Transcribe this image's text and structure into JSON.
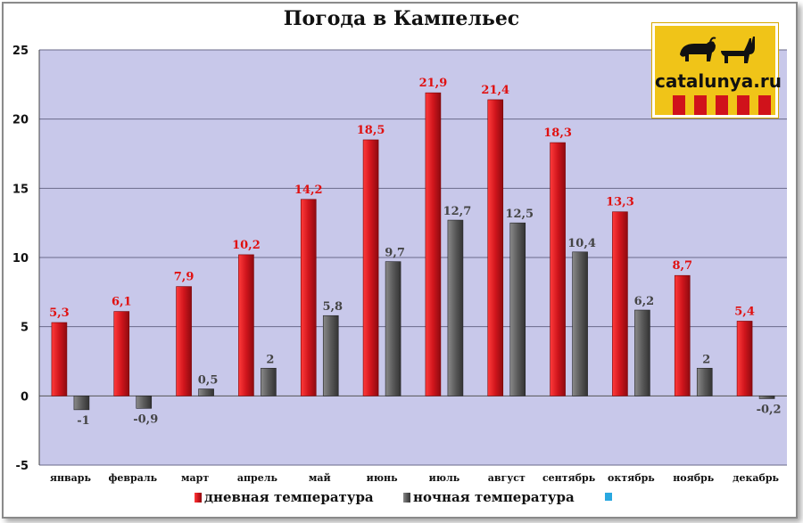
{
  "chart_data": {
    "type": "bar",
    "title": "Погода в Кампельес",
    "categories": [
      "январь",
      "февраль",
      "март",
      "апрель",
      "май",
      "июнь",
      "июль",
      "август",
      "сентябрь",
      "октябрь",
      "ноябрь",
      "декабрь"
    ],
    "series": [
      {
        "name": "дневная температура",
        "color": "#d0151c",
        "values": [
          5.3,
          6.1,
          7.9,
          10.2,
          14.2,
          18.5,
          21.9,
          21.4,
          18.3,
          13.3,
          8.7,
          5.4
        ],
        "labels": [
          "5,3",
          "6,1",
          "7,9",
          "10,2",
          "14,2",
          "18,5",
          "21,9",
          "21,4",
          "18,3",
          "13,3",
          "8,7",
          "5,4"
        ]
      },
      {
        "name": "ночная температура",
        "color": "#5a5a5a",
        "values": [
          -1,
          -0.9,
          0.5,
          2,
          5.8,
          9.7,
          12.7,
          12.5,
          10.4,
          6.2,
          2,
          -0.2
        ],
        "labels": [
          "-1",
          "-0,9",
          "0,5",
          "2",
          "5,8",
          "9,7",
          "12,7",
          "12,5",
          "10,4",
          "6,2",
          "2",
          "-0,2"
        ]
      }
    ],
    "legend_extra_marker_color": "#29a8e0",
    "ylim": [
      -5,
      25
    ],
    "yticks": [
      "-5",
      "0",
      "5",
      "10",
      "15",
      "20",
      "25"
    ],
    "grid": true,
    "legend_position": "bottom",
    "plot_background": "#c8c8ea"
  },
  "logo": {
    "text": "catalunya.ru"
  }
}
